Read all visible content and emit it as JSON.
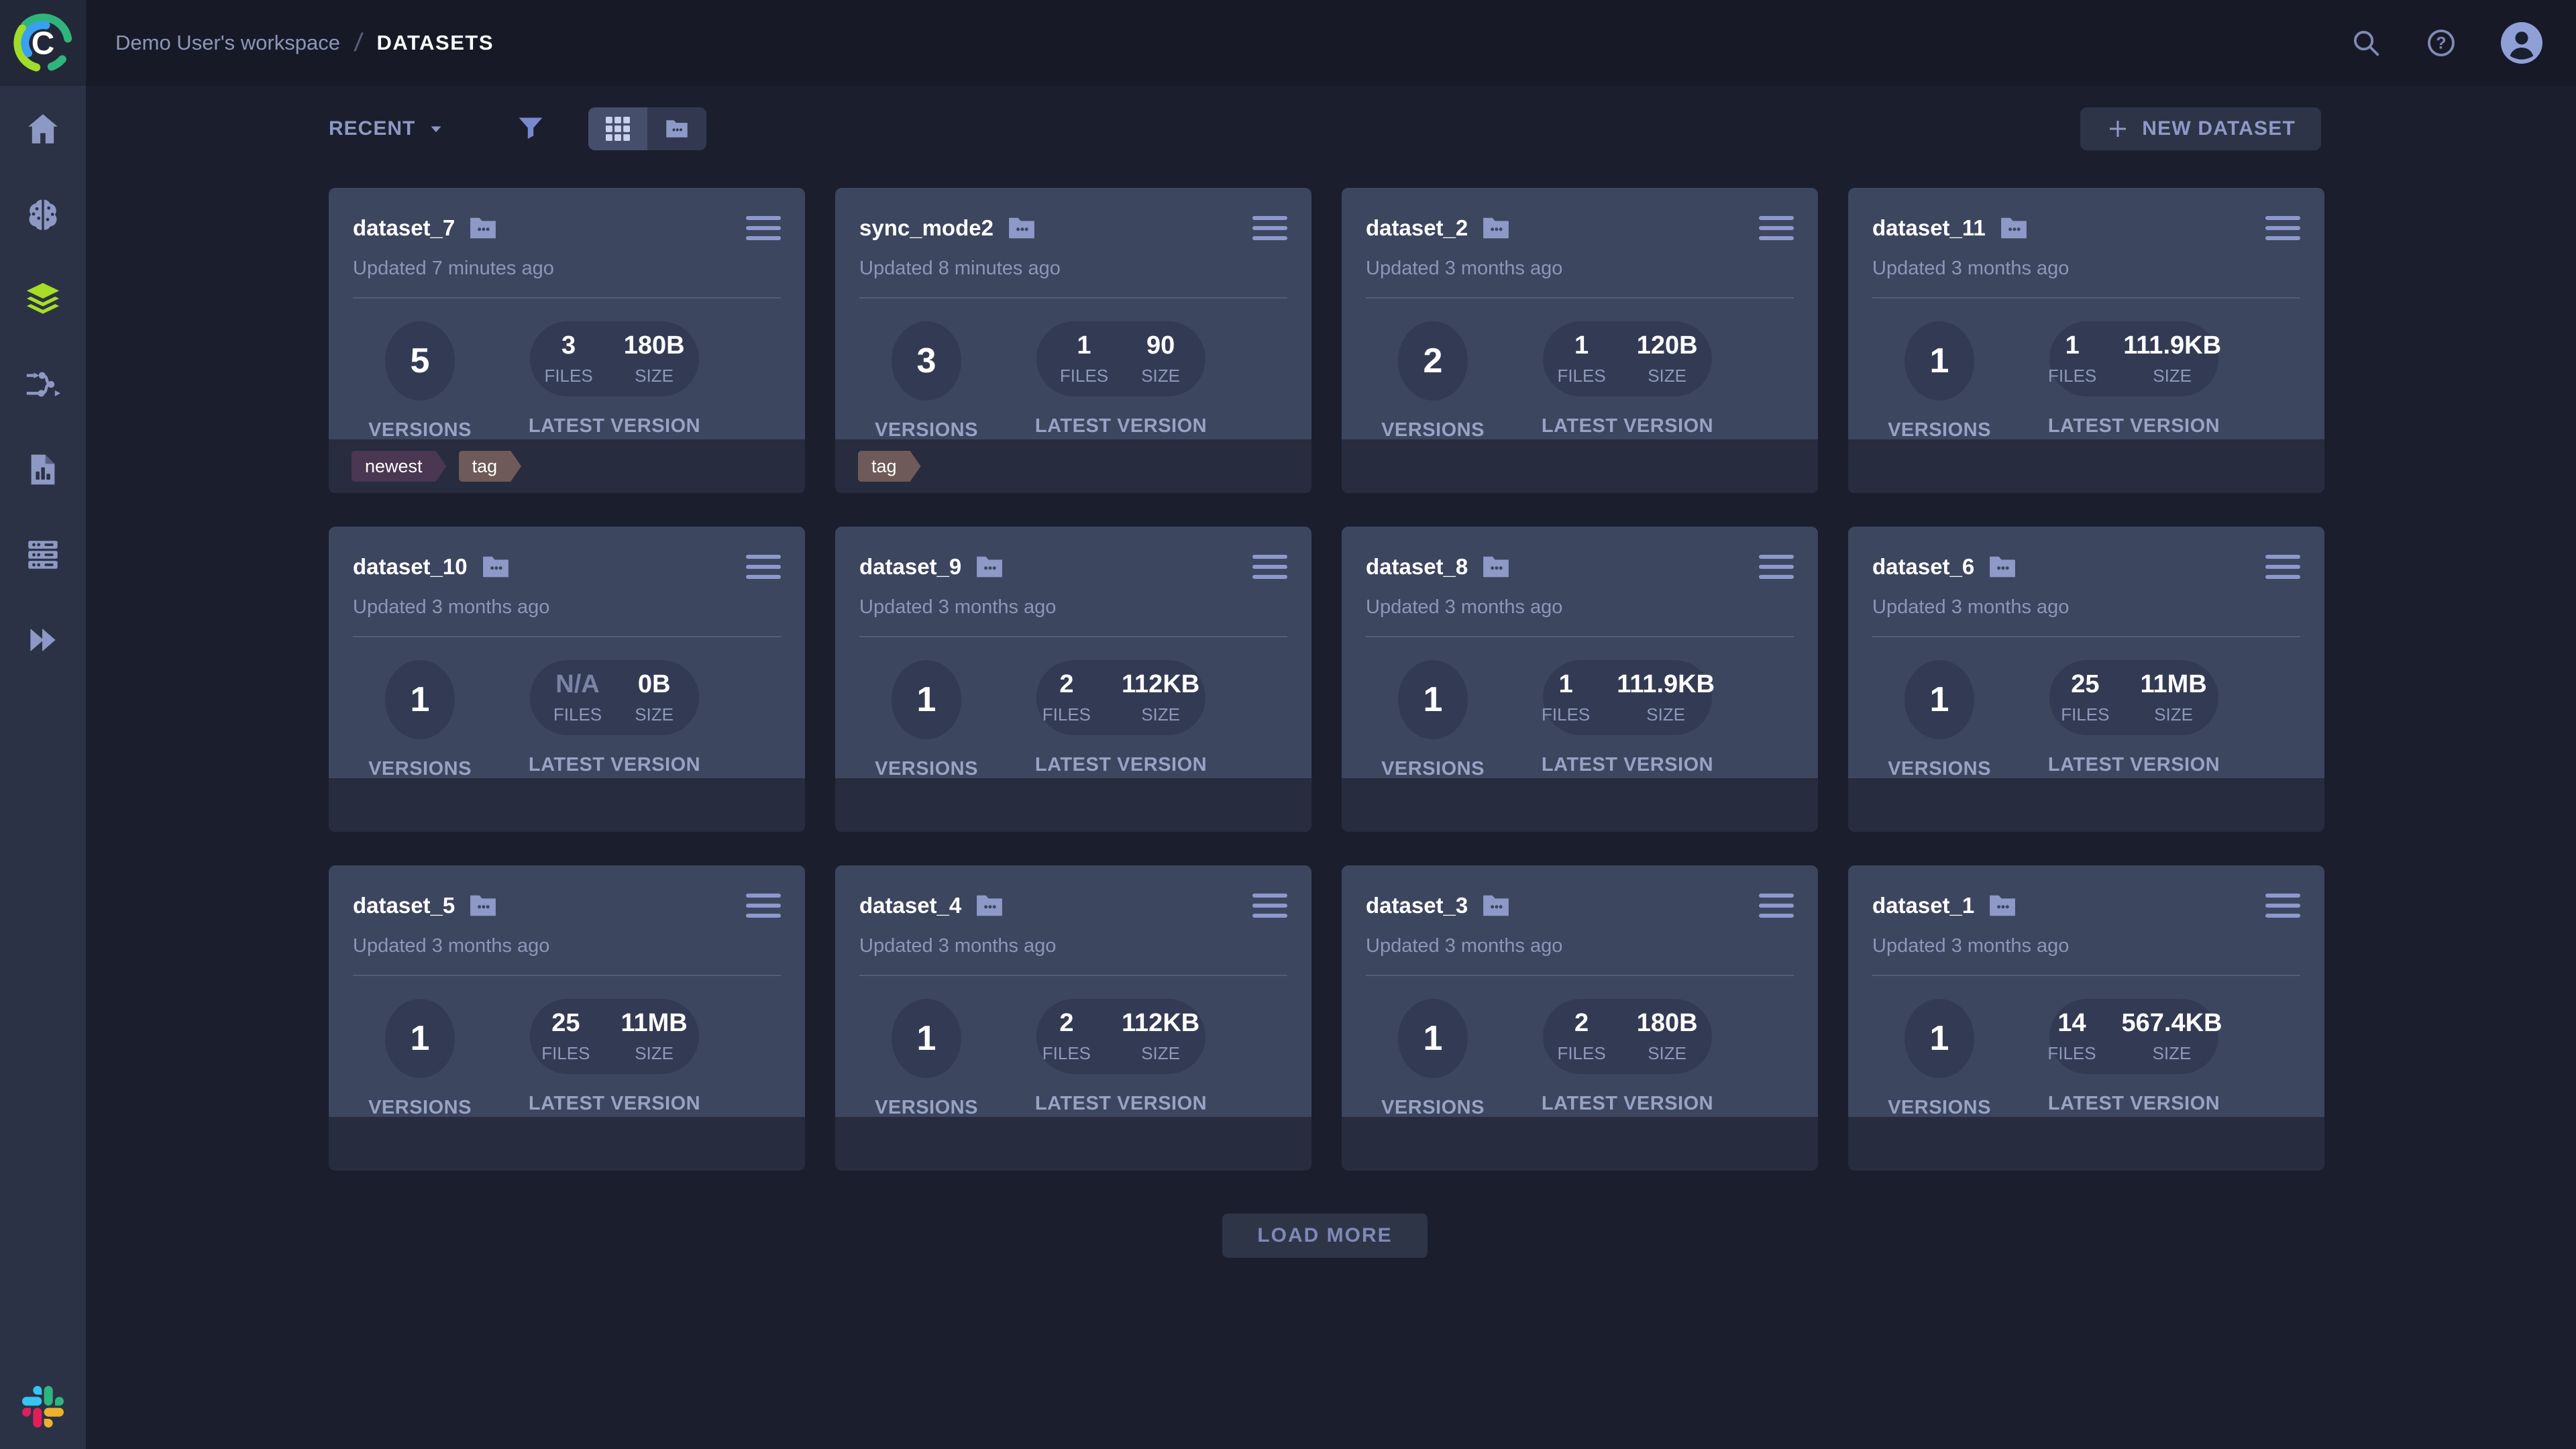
{
  "topbar": {
    "workspace": "Demo User's workspace",
    "separator": "/",
    "page": "DATASETS"
  },
  "sidebar": {
    "items": [
      "home",
      "projects",
      "datasets",
      "pipelines",
      "reports",
      "workers-and-queues",
      "applications"
    ],
    "active_item": "datasets",
    "bottom_item": "slack"
  },
  "toolbar": {
    "sort_label": "RECENT",
    "view_modes": [
      "grid-view",
      "folder-view"
    ],
    "active_view": "grid-view",
    "new_dataset_label": "NEW DATASET"
  },
  "labels": {
    "versions": "VERSIONS",
    "latest_version": "LATEST VERSION",
    "files": "FILES",
    "size": "SIZE"
  },
  "cards": [
    {
      "name": "dataset_7",
      "updated": "Updated 7 minutes ago",
      "versions": "5",
      "files": "3",
      "size": "180B",
      "tags": [
        {
          "label": "newest",
          "color": "#4a3751"
        },
        {
          "label": "tag",
          "color": "#6e5a58"
        }
      ]
    },
    {
      "name": "sync_mode2",
      "updated": "Updated 8 minutes ago",
      "versions": "3",
      "files": "1",
      "size": "90",
      "tags": [
        {
          "label": "tag",
          "color": "#6e5a58"
        }
      ]
    },
    {
      "name": "dataset_2",
      "updated": "Updated 3 months ago",
      "versions": "2",
      "files": "1",
      "size": "120B",
      "tags": []
    },
    {
      "name": "dataset_11",
      "updated": "Updated 3 months ago",
      "versions": "1",
      "files": "1",
      "size": "111.9KB",
      "tags": []
    },
    {
      "name": "dataset_10",
      "updated": "Updated 3 months ago",
      "versions": "1",
      "files": "N/A",
      "size": "0B",
      "tags": []
    },
    {
      "name": "dataset_9",
      "updated": "Updated 3 months ago",
      "versions": "1",
      "files": "2",
      "size": "112KB",
      "tags": []
    },
    {
      "name": "dataset_8",
      "updated": "Updated 3 months ago",
      "versions": "1",
      "files": "1",
      "size": "111.9KB",
      "tags": []
    },
    {
      "name": "dataset_6",
      "updated": "Updated 3 months ago",
      "versions": "1",
      "files": "25",
      "size": "11MB",
      "tags": []
    },
    {
      "name": "dataset_5",
      "updated": "Updated 3 months ago",
      "versions": "1",
      "files": "25",
      "size": "11MB",
      "tags": []
    },
    {
      "name": "dataset_4",
      "updated": "Updated 3 months ago",
      "versions": "1",
      "files": "2",
      "size": "112KB",
      "tags": []
    },
    {
      "name": "dataset_3",
      "updated": "Updated 3 months ago",
      "versions": "1",
      "files": "2",
      "size": "180B",
      "tags": []
    },
    {
      "name": "dataset_1",
      "updated": "Updated 3 months ago",
      "versions": "1",
      "files": "14",
      "size": "567.4KB",
      "tags": []
    }
  ],
  "load_more_label": "LOAD MORE",
  "colors": {
    "accent_lime": "#a6de25",
    "card_background": "#3d465f",
    "page_background": "#1b1f2d",
    "tag_newest": "#4a3751",
    "tag_generic": "#6e5a58"
  }
}
